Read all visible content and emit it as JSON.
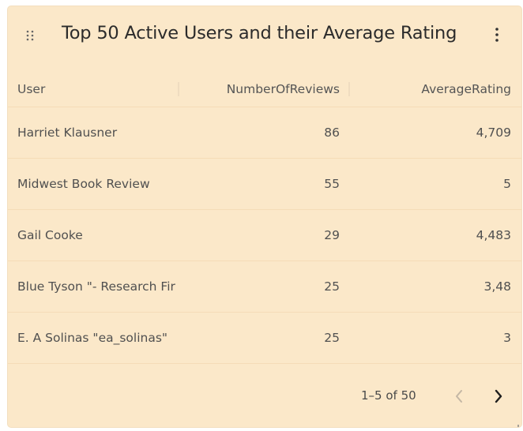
{
  "card": {
    "title": "Top 50 Active Users and their Average Rating",
    "drag_icon": "drag-dots-icon",
    "menu_icon": "more-vertical-icon"
  },
  "table": {
    "columns": [
      "User",
      "NumberOfReviews",
      "AverageRating"
    ],
    "rows": [
      {
        "user": "Harriet Klausner",
        "reviews": "86",
        "rating": "4,709"
      },
      {
        "user": "Midwest Book Review",
        "reviews": "55",
        "rating": "5"
      },
      {
        "user": "Gail Cooke",
        "reviews": "29",
        "rating": "4,483"
      },
      {
        "user": "Blue Tyson \"- Research Fir",
        "reviews": "25",
        "rating": "3,48"
      },
      {
        "user": "E. A Solinas \"ea_solinas\"",
        "reviews": "25",
        "rating": "3"
      }
    ]
  },
  "pagination": {
    "range_label": "1–5 of 50",
    "prev_icon": "chevron-left-icon",
    "next_icon": "chevron-right-icon"
  },
  "colors": {
    "card_background": "#fbe8c9",
    "row_divider": "#f5dcb7",
    "text": "#505050"
  }
}
